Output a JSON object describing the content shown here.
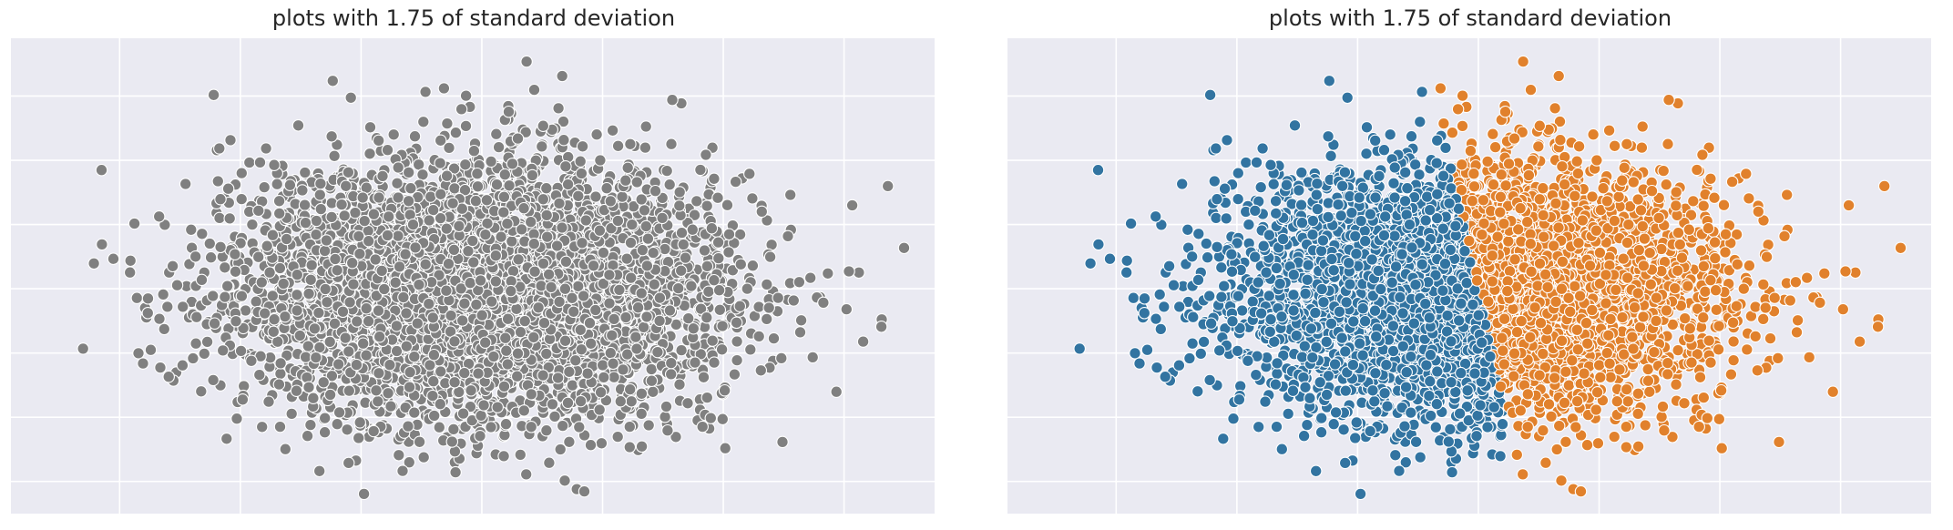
{
  "chart_data": [
    {
      "type": "scatter",
      "title": "plots with 1.75 of standard deviation",
      "xlabel": "",
      "ylabel": "",
      "xlim": [
        -3.9,
        3.75
      ],
      "ylim": [
        -3.5,
        3.9
      ],
      "grid": true,
      "background": "#eaeaf2",
      "n_points": 5000,
      "std": 1.75,
      "color": "#808080",
      "split_x": null
    },
    {
      "type": "scatter",
      "title": "plots with 1.75 of standard deviation",
      "xlabel": "",
      "ylabel": "",
      "xlim": [
        -3.9,
        3.75
      ],
      "ylim": [
        -3.5,
        3.9
      ],
      "grid": true,
      "background": "#eaeaf2",
      "n_points": 5000,
      "std": 1.75,
      "split_x": 0,
      "classes": [
        {
          "color": "#3274a1",
          "region": "x < 0"
        },
        {
          "color": "#e1812c",
          "region": "x >= 0"
        }
      ]
    }
  ]
}
